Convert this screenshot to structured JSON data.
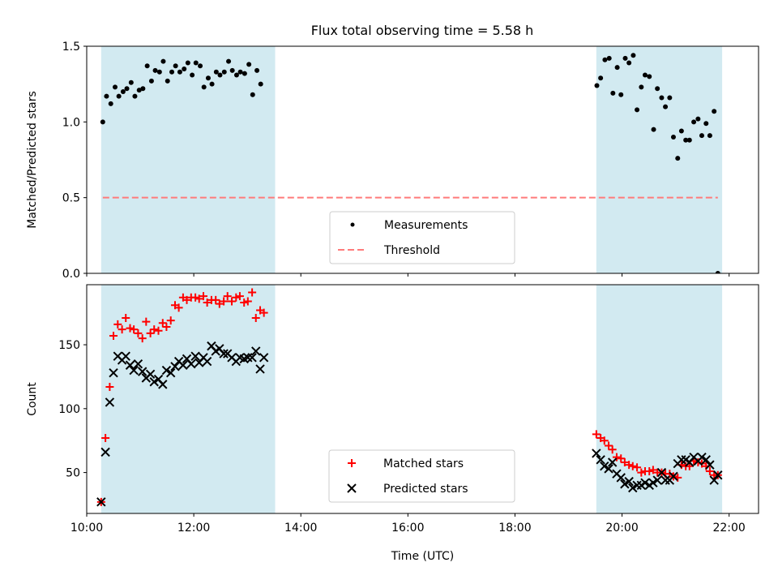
{
  "title": "Flux total observing time = 5.58 h",
  "chart_data": [
    {
      "type": "scatter",
      "ylabel": "Matched/Predicted stars",
      "xlabel": "",
      "xlim": [
        10.0,
        22.55
      ],
      "ylim": [
        0.0,
        1.5
      ],
      "yticks": [
        0.0,
        0.5,
        1.0,
        1.5
      ],
      "ytick_labels": [
        "0.0",
        "0.5",
        "1.0",
        "1.5"
      ],
      "shaded_spans": [
        [
          10.27,
          13.52
        ],
        [
          19.52,
          21.87
        ]
      ],
      "shade_color": "#add8e6",
      "legend_position": "lower center",
      "series": [
        {
          "name": "Measurements",
          "marker": "dot",
          "color": "#000000",
          "points": [
            [
              10.3,
              1.0
            ],
            [
              10.37,
              1.17
            ],
            [
              10.45,
              1.12
            ],
            [
              10.53,
              1.23
            ],
            [
              10.6,
              1.17
            ],
            [
              10.68,
              1.2
            ],
            [
              10.75,
              1.22
            ],
            [
              10.83,
              1.26
            ],
            [
              10.9,
              1.17
            ],
            [
              10.98,
              1.21
            ],
            [
              11.05,
              1.22
            ],
            [
              11.13,
              1.37
            ],
            [
              11.21,
              1.27
            ],
            [
              11.28,
              1.34
            ],
            [
              11.36,
              1.33
            ],
            [
              11.43,
              1.4
            ],
            [
              11.51,
              1.27
            ],
            [
              11.59,
              1.33
            ],
            [
              11.66,
              1.37
            ],
            [
              11.74,
              1.33
            ],
            [
              11.82,
              1.35
            ],
            [
              11.89,
              1.39
            ],
            [
              11.97,
              1.31
            ],
            [
              12.04,
              1.39
            ],
            [
              12.12,
              1.37
            ],
            [
              12.19,
              1.23
            ],
            [
              12.27,
              1.29
            ],
            [
              12.34,
              1.25
            ],
            [
              12.42,
              1.33
            ],
            [
              12.49,
              1.31
            ],
            [
              12.57,
              1.33
            ],
            [
              12.65,
              1.4
            ],
            [
              12.72,
              1.34
            ],
            [
              12.8,
              1.31
            ],
            [
              12.87,
              1.33
            ],
            [
              12.95,
              1.32
            ],
            [
              13.03,
              1.38
            ],
            [
              13.1,
              1.18
            ],
            [
              13.18,
              1.34
            ],
            [
              13.25,
              1.25
            ],
            [
              19.53,
              1.24
            ],
            [
              19.6,
              1.29
            ],
            [
              19.68,
              1.41
            ],
            [
              19.76,
              1.42
            ],
            [
              19.83,
              1.19
            ],
            [
              19.91,
              1.36
            ],
            [
              19.98,
              1.18
            ],
            [
              20.06,
              1.42
            ],
            [
              20.13,
              1.39
            ],
            [
              20.21,
              1.44
            ],
            [
              20.28,
              1.08
            ],
            [
              20.36,
              1.23
            ],
            [
              20.43,
              1.31
            ],
            [
              20.51,
              1.3
            ],
            [
              20.59,
              0.95
            ],
            [
              20.66,
              1.22
            ],
            [
              20.74,
              1.16
            ],
            [
              20.81,
              1.1
            ],
            [
              20.89,
              1.16
            ],
            [
              20.96,
              0.9
            ],
            [
              21.04,
              0.76
            ],
            [
              21.11,
              0.94
            ],
            [
              21.19,
              0.88
            ],
            [
              21.26,
              0.88
            ],
            [
              21.34,
              1.0
            ],
            [
              21.42,
              1.02
            ],
            [
              21.49,
              0.91
            ],
            [
              21.57,
              0.99
            ],
            [
              21.64,
              0.91
            ],
            [
              21.72,
              1.07
            ],
            [
              21.79,
              0.0
            ]
          ]
        },
        {
          "name": "Threshold",
          "marker": "dashed-line",
          "color": "#ff7b7b",
          "points": [
            [
              10.3,
              0.5
            ],
            [
              21.79,
              0.5
            ]
          ]
        }
      ]
    },
    {
      "type": "scatter",
      "ylabel": "Count",
      "xlabel": "Time (UTC)",
      "xlim": [
        10.0,
        22.55
      ],
      "ylim": [
        18,
        197
      ],
      "yticks": [
        50,
        100,
        150
      ],
      "ytick_labels": [
        "50",
        "100",
        "150"
      ],
      "xticks": [
        10,
        12,
        14,
        16,
        18,
        20,
        22
      ],
      "xtick_labels": [
        "10:00",
        "12:00",
        "14:00",
        "16:00",
        "18:00",
        "20:00",
        "22:00"
      ],
      "shaded_spans": [
        [
          10.27,
          13.52
        ],
        [
          19.52,
          21.87
        ]
      ],
      "shade_color": "#add8e6",
      "legend_position": "lower center",
      "series": [
        {
          "name": "Matched stars",
          "marker": "plus",
          "color": "#ff0000",
          "points": [
            [
              10.27,
              27
            ],
            [
              10.35,
              77
            ],
            [
              10.43,
              117
            ],
            [
              10.5,
              157
            ],
            [
              10.58,
              166
            ],
            [
              10.66,
              162
            ],
            [
              10.73,
              171
            ],
            [
              10.81,
              163
            ],
            [
              10.88,
              162
            ],
            [
              10.96,
              159
            ],
            [
              11.04,
              155
            ],
            [
              11.11,
              168
            ],
            [
              11.19,
              159
            ],
            [
              11.26,
              162
            ],
            [
              11.34,
              161
            ],
            [
              11.42,
              167
            ],
            [
              11.49,
              164
            ],
            [
              11.57,
              169
            ],
            [
              11.65,
              181
            ],
            [
              11.72,
              179
            ],
            [
              11.8,
              187
            ],
            [
              11.87,
              185
            ],
            [
              11.95,
              187
            ],
            [
              12.03,
              187
            ],
            [
              12.1,
              186
            ],
            [
              12.18,
              188
            ],
            [
              12.25,
              183
            ],
            [
              12.33,
              185
            ],
            [
              12.41,
              185
            ],
            [
              12.48,
              182
            ],
            [
              12.56,
              184
            ],
            [
              12.63,
              188
            ],
            [
              12.71,
              184
            ],
            [
              12.79,
              187
            ],
            [
              12.86,
              188
            ],
            [
              12.94,
              183
            ],
            [
              13.01,
              184
            ],
            [
              13.09,
              191
            ],
            [
              13.16,
              171
            ],
            [
              13.24,
              177
            ],
            [
              13.31,
              175
            ],
            [
              19.52,
              80
            ],
            [
              19.6,
              77
            ],
            [
              19.67,
              75
            ],
            [
              19.75,
              71
            ],
            [
              19.82,
              68
            ],
            [
              19.9,
              62
            ],
            [
              19.98,
              61
            ],
            [
              20.05,
              58
            ],
            [
              20.13,
              56
            ],
            [
              20.2,
              55
            ],
            [
              20.28,
              54
            ],
            [
              20.36,
              50
            ],
            [
              20.43,
              51
            ],
            [
              20.51,
              51
            ],
            [
              20.58,
              52
            ],
            [
              20.66,
              50
            ],
            [
              20.74,
              50
            ],
            [
              20.81,
              49
            ],
            [
              20.89,
              49
            ],
            [
              20.96,
              47
            ],
            [
              21.04,
              46
            ],
            [
              21.11,
              56
            ],
            [
              21.19,
              55
            ],
            [
              21.26,
              55
            ],
            [
              21.34,
              59
            ],
            [
              21.42,
              58
            ],
            [
              21.49,
              57
            ],
            [
              21.57,
              55
            ],
            [
              21.64,
              51
            ],
            [
              21.72,
              48
            ],
            [
              21.79,
              48
            ]
          ]
        },
        {
          "name": "Predicted stars",
          "marker": "x",
          "color": "#000000",
          "points": [
            [
              10.27,
              27
            ],
            [
              10.35,
              66
            ],
            [
              10.43,
              105
            ],
            [
              10.5,
              128
            ],
            [
              10.58,
              141
            ],
            [
              10.66,
              138
            ],
            [
              10.73,
              141
            ],
            [
              10.81,
              134
            ],
            [
              10.88,
              130
            ],
            [
              10.96,
              135
            ],
            [
              11.04,
              129
            ],
            [
              11.11,
              124
            ],
            [
              11.19,
              127
            ],
            [
              11.26,
              121
            ],
            [
              11.34,
              123
            ],
            [
              11.42,
              119
            ],
            [
              11.49,
              130
            ],
            [
              11.57,
              128
            ],
            [
              11.65,
              133
            ],
            [
              11.72,
              137
            ],
            [
              11.8,
              134
            ],
            [
              11.87,
              139
            ],
            [
              11.95,
              135
            ],
            [
              12.03,
              141
            ],
            [
              12.1,
              136
            ],
            [
              12.18,
              140
            ],
            [
              12.25,
              137
            ],
            [
              12.33,
              149
            ],
            [
              12.41,
              145
            ],
            [
              12.48,
              147
            ],
            [
              12.56,
              143
            ],
            [
              12.63,
              143
            ],
            [
              12.71,
              140
            ],
            [
              12.79,
              137
            ],
            [
              12.86,
              140
            ],
            [
              12.94,
              139
            ],
            [
              13.01,
              140
            ],
            [
              13.09,
              140
            ],
            [
              13.16,
              145
            ],
            [
              13.24,
              131
            ],
            [
              13.31,
              140
            ],
            [
              19.52,
              65
            ],
            [
              19.6,
              60
            ],
            [
              19.67,
              55
            ],
            [
              19.75,
              53
            ],
            [
              19.82,
              58
            ],
            [
              19.9,
              49
            ],
            [
              19.98,
              46
            ],
            [
              20.05,
              41
            ],
            [
              20.13,
              43
            ],
            [
              20.2,
              38
            ],
            [
              20.28,
              40
            ],
            [
              20.36,
              40
            ],
            [
              20.43,
              42
            ],
            [
              20.51,
              40
            ],
            [
              20.58,
              42
            ],
            [
              20.66,
              44
            ],
            [
              20.74,
              50
            ],
            [
              20.81,
              44
            ],
            [
              20.89,
              44
            ],
            [
              20.96,
              47
            ],
            [
              21.04,
              57
            ],
            [
              21.11,
              60
            ],
            [
              21.19,
              60
            ],
            [
              21.26,
              58
            ],
            [
              21.34,
              62
            ],
            [
              21.42,
              59
            ],
            [
              21.49,
              62
            ],
            [
              21.57,
              60
            ],
            [
              21.64,
              56
            ],
            [
              21.72,
              44
            ],
            [
              21.79,
              48
            ]
          ]
        }
      ]
    }
  ]
}
